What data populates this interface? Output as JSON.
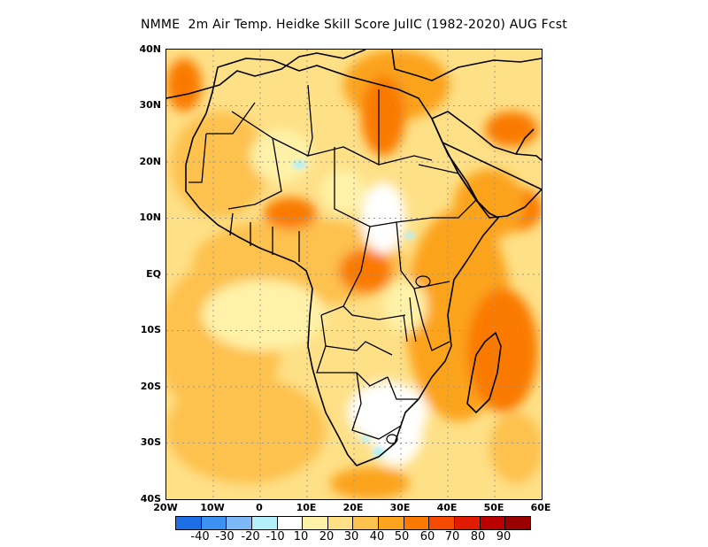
{
  "title": "NMME  2m Air Temp. Heidke Skill Score JulIC (1982-2020) AUG Fcst",
  "axes": {
    "lat_labels": [
      "40N",
      "30N",
      "20N",
      "10N",
      "EQ",
      "10S",
      "20S",
      "30S",
      "40S"
    ],
    "lat_values": [
      40,
      30,
      20,
      10,
      0,
      -10,
      -20,
      -30,
      -40
    ],
    "lon_labels": [
      "20W",
      "10W",
      "0",
      "10E",
      "20E",
      "30E",
      "40E",
      "50E",
      "60E"
    ],
    "lon_values": [
      -20,
      -10,
      0,
      10,
      20,
      30,
      40,
      50,
      60
    ],
    "lon_range": [
      -20,
      60
    ],
    "lat_range": [
      -40,
      40
    ],
    "grid": true
  },
  "colorbar": {
    "colors": [
      "#1e6fe6",
      "#3c92f0",
      "#7cb8f5",
      "#b4f0fa",
      "#ffffff",
      "#fff2a8",
      "#fee087",
      "#fdc14d",
      "#fca31e",
      "#fa7a00",
      "#f54a00",
      "#e11b00",
      "#bc0000",
      "#9a0000"
    ],
    "labels": [
      "-40",
      "-30",
      "-20",
      "-10",
      "10",
      "20",
      "30",
      "40",
      "50",
      "60",
      "70",
      "80",
      "90"
    ]
  }
}
